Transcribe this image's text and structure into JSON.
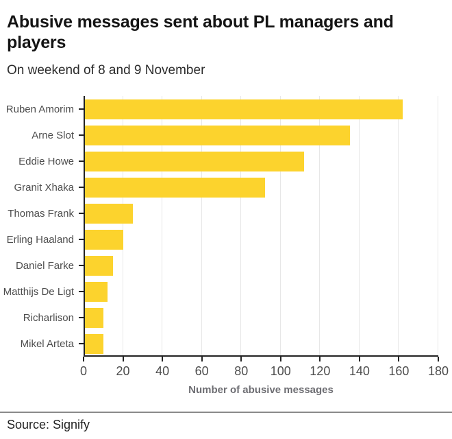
{
  "page": {
    "title": "Abusive messages sent about PL managers and players",
    "subtitle": "On weekend of 8 and 9 November",
    "source_label": "Source: Signify"
  },
  "chart_data": {
    "type": "bar",
    "orientation": "horizontal",
    "title": "Abusive messages sent about PL managers and players",
    "subtitle": "On weekend of 8 and 9 November",
    "categories": [
      "Ruben Amorim",
      "Arne Slot",
      "Eddie Howe",
      "Granit Xhaka",
      "Thomas Frank",
      "Erling Haaland",
      "Daniel Farke",
      "Matthijs De Ligt",
      "Richarlison",
      "Mikel Arteta"
    ],
    "values": [
      162,
      135,
      112,
      92,
      25,
      20,
      15,
      12,
      10,
      10
    ],
    "xlabel": "Number of abusive messages",
    "xlim": [
      0,
      180
    ],
    "xticks": [
      0,
      20,
      40,
      60,
      80,
      100,
      120,
      140,
      160,
      180
    ],
    "grid": "vertical-only",
    "legend": "none",
    "bar_color": "#FCD32D",
    "axis_color": "#222222",
    "gridline_color": "#e7e7e7",
    "label_color": "#4d4d4d",
    "source": "Source: Signify"
  }
}
